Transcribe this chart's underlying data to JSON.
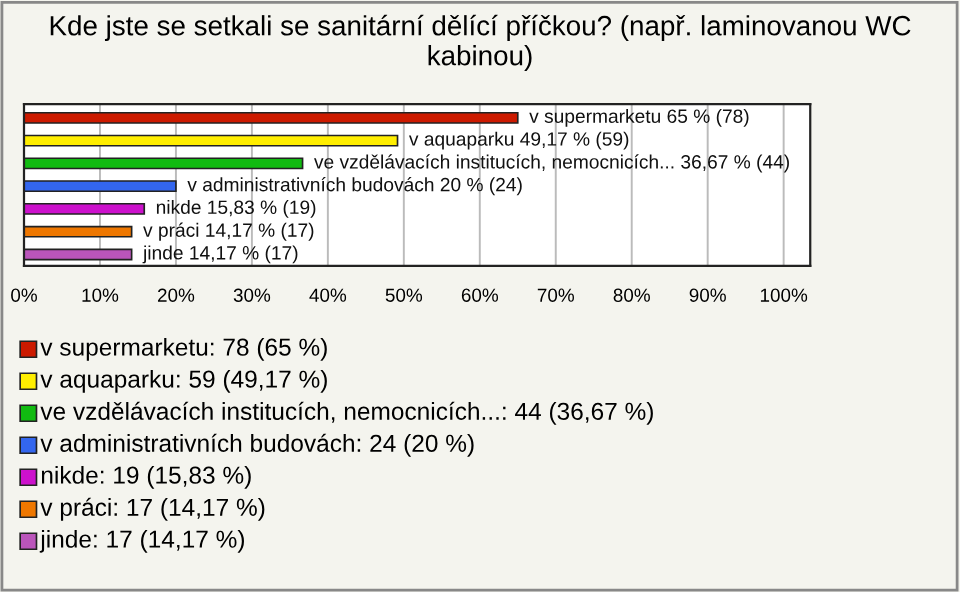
{
  "chart_data": {
    "type": "bar",
    "orientation": "horizontal",
    "title": "Kde jste se setkali se sanitární dělící příčkou? (např. laminovanou WC kabinou)",
    "categories": [
      null,
      null,
      null,
      null,
      null,
      null,
      null
    ],
    "values": [
      65,
      49.17,
      36.67,
      20,
      15.83,
      14.17,
      14.17
    ],
    "colors": [
      "#cc1a00",
      "#ffee00",
      "#11bb11",
      "#3366ee",
      "#cc11cc",
      "#ee7700",
      "#bb55bb"
    ],
    "value_labels": [
      "v supermarketu 65 % (78)",
      "v aquaparku 49,17 % (59)",
      "ve vzdělávacích institucích, nemocnicích... 36,67 % (44)",
      "v administrativních budovách 20 % (24)",
      "nikde 15,83 % (19)",
      "v práci 14,17 % (17)",
      "jinde 14,17 % (17)"
    ],
    "annotations": [
      "v supermarketu: 78 (65 %)",
      "v aquaparku: 59 (49,17 %)",
      "ve vzdělávacích institucích, nemocnicích...: 44 (36,67 %)",
      "v administrativních budovách: 24 (20 %)",
      "nikde: 19 (15,83 %)",
      "v práci: 17 (14,17 %)",
      "jinde: 17 (14,17 %)"
    ],
    "xlim": [
      0,
      103.5
    ],
    "xticks": [
      {
        "value": 0,
        "label": "0%"
      },
      {
        "value": 10,
        "label": "10%"
      },
      {
        "value": 20,
        "label": "20%"
      },
      {
        "value": 30,
        "label": "30%"
      },
      {
        "value": 40,
        "label": "40%"
      },
      {
        "value": 50,
        "label": "50%"
      },
      {
        "value": 60,
        "label": "60%"
      },
      {
        "value": 70,
        "label": "70%"
      },
      {
        "value": 80,
        "label": "80%"
      },
      {
        "value": 90,
        "label": "90%"
      },
      {
        "value": 100,
        "label": "100%"
      }
    ],
    "grid": "x",
    "tick_labels": "x"
  }
}
